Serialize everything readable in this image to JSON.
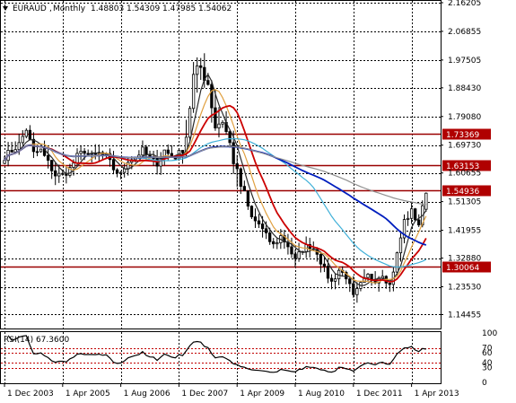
{
  "chart_data": {
    "type": "candlestick",
    "symbol": "EURAUD",
    "timeframe": "Monthly",
    "ohlc_header": [
      "1.48803",
      "1.54309",
      "1.47985",
      "1.54062"
    ],
    "ylim": [
      1.105,
      2.165
    ],
    "y_ticks": [
      "2.16205",
      "2.06855",
      "1.97505",
      "1.88430",
      "1.79080",
      "1.69730",
      "1.60655",
      "1.51305",
      "1.41955",
      "1.32880",
      "1.23530",
      "1.14455"
    ],
    "x_ticks": [
      "1 Dec 2003",
      "1 Apr 2005",
      "1 Aug 2006",
      "1 Dec 2007",
      "1 Apr 2009",
      "1 Aug 2010",
      "1 Dec 2011",
      "1 Apr 2013"
    ],
    "x_tick_months": [
      0,
      16,
      32,
      48,
      64,
      80,
      96,
      112
    ],
    "months_total": 120,
    "grid": true,
    "horizontal_levels": [
      {
        "label": "1.73369",
        "value": 1.73369
      },
      {
        "label": "1.63153",
        "value": 1.63153
      },
      {
        "label": "1.54936",
        "value": 1.54936
      },
      {
        "label": "1.30064",
        "value": 1.30064
      }
    ],
    "anchors": [
      [
        0,
        1.66
      ],
      [
        4,
        1.7
      ],
      [
        6,
        1.75
      ],
      [
        8,
        1.67
      ],
      [
        10,
        1.68
      ],
      [
        12,
        1.64
      ],
      [
        14,
        1.6
      ],
      [
        16,
        1.6
      ],
      [
        18,
        1.62
      ],
      [
        20,
        1.66
      ],
      [
        22,
        1.68
      ],
      [
        24,
        1.66
      ],
      [
        26,
        1.67
      ],
      [
        28,
        1.66
      ],
      [
        30,
        1.62
      ],
      [
        32,
        1.6
      ],
      [
        34,
        1.65
      ],
      [
        36,
        1.66
      ],
      [
        38,
        1.68
      ],
      [
        40,
        1.65
      ],
      [
        42,
        1.64
      ],
      [
        44,
        1.68
      ],
      [
        46,
        1.66
      ],
      [
        48,
        1.66
      ],
      [
        50,
        1.73
      ],
      [
        52,
        1.92
      ],
      [
        54,
        1.95
      ],
      [
        56,
        1.9
      ],
      [
        58,
        1.76
      ],
      [
        60,
        1.78
      ],
      [
        62,
        1.7
      ],
      [
        64,
        1.6
      ],
      [
        66,
        1.53
      ],
      [
        68,
        1.46
      ],
      [
        70,
        1.44
      ],
      [
        72,
        1.4
      ],
      [
        74,
        1.37
      ],
      [
        76,
        1.4
      ],
      [
        78,
        1.37
      ],
      [
        80,
        1.32
      ],
      [
        82,
        1.36
      ],
      [
        84,
        1.37
      ],
      [
        86,
        1.35
      ],
      [
        88,
        1.29
      ],
      [
        90,
        1.25
      ],
      [
        92,
        1.29
      ],
      [
        94,
        1.27
      ],
      [
        96,
        1.2
      ],
      [
        98,
        1.24
      ],
      [
        100,
        1.27
      ],
      [
        102,
        1.26
      ],
      [
        104,
        1.28
      ],
      [
        106,
        1.24
      ],
      [
        108,
        1.34
      ],
      [
        110,
        1.45
      ],
      [
        112,
        1.48
      ],
      [
        114,
        1.44
      ],
      [
        116,
        1.54
      ]
    ],
    "ma_periods": [
      5,
      8,
      13,
      34,
      55,
      89
    ],
    "ma_colors": [
      "#2a2a2a",
      "#e0a040",
      "#cc0000",
      "#40b0d8",
      "#001ebe",
      "#909090"
    ],
    "rsi": {
      "label": "RSI(14) 67.3600",
      "period": 14,
      "ylim": [
        0,
        100
      ],
      "levels": [
        70,
        60,
        40,
        30
      ],
      "tick_labels": [
        "100",
        "70",
        "60",
        "40",
        "30",
        "0"
      ],
      "tick_values": [
        100,
        70,
        60,
        40,
        30,
        0
      ],
      "last_value": 67.36
    }
  }
}
